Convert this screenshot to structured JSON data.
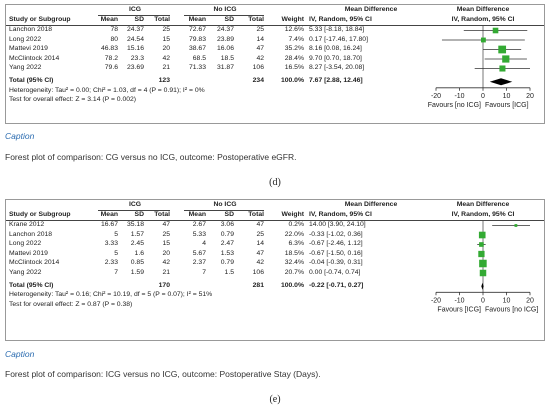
{
  "headers": {
    "study": "Study or Subgroup",
    "mean": "Mean",
    "sd": "SD",
    "total": "Total",
    "weight": "Weight",
    "md_title": "Mean Difference",
    "md_method": "IV, Random, 95% CI"
  },
  "panels": [
    {
      "label": "(d)",
      "exp_group": "ICG",
      "ctrl_group": "No ICG",
      "caption_label": "Caption",
      "caption_text": "Forest plot of comparison: CG versus no ICG, outcome: Postoperative eGFR.",
      "studies": [
        {
          "name": "Lanchon 2018",
          "m1": "78",
          "sd1": "24.37",
          "n1": "25",
          "m2": "72.67",
          "sd2": "24.37",
          "n2": "25",
          "weight": "12.6%",
          "ci": "5.33 [-8.18, 18.84]",
          "md": 5.33,
          "lo": -8.18,
          "hi": 18.84,
          "w": 12.6
        },
        {
          "name": "Long 2022",
          "m1": "80",
          "sd1": "24.54",
          "n1": "15",
          "m2": "79.83",
          "sd2": "23.89",
          "n2": "14",
          "weight": "7.4%",
          "ci": "0.17 [-17.46, 17.80]",
          "md": 0.17,
          "lo": -17.46,
          "hi": 17.8,
          "w": 7.4
        },
        {
          "name": "Mattevi 2019",
          "m1": "46.83",
          "sd1": "15.16",
          "n1": "20",
          "m2": "38.67",
          "sd2": "16.06",
          "n2": "47",
          "weight": "35.2%",
          "ci": "8.16 [0.08, 16.24]",
          "md": 8.16,
          "lo": 0.08,
          "hi": 16.24,
          "w": 35.2
        },
        {
          "name": "McClintock 2014",
          "m1": "78.2",
          "sd1": "23.3",
          "n1": "42",
          "m2": "68.5",
          "sd2": "18.5",
          "n2": "42",
          "weight": "28.4%",
          "ci": "9.70 [0.70, 18.70]",
          "md": 9.7,
          "lo": 0.7,
          "hi": 18.7,
          "w": 28.4
        },
        {
          "name": "Yang 2022",
          "m1": "79.6",
          "sd1": "23.69",
          "n1": "21",
          "m2": "71.33",
          "sd2": "31.87",
          "n2": "106",
          "weight": "16.5%",
          "ci": "8.27 [-3.54, 20.08]",
          "md": 8.27,
          "lo": -3.54,
          "hi": 20.08,
          "w": 16.5
        }
      ],
      "total": {
        "label": "Total (95% CI)",
        "n1": "123",
        "n2": "234",
        "weight": "100.0%",
        "ci": "7.67 [2.88, 12.46]",
        "md": 7.67,
        "lo": 2.88,
        "hi": 12.46
      },
      "heterogeneity": "Heterogeneity: Tau² = 0.00; Chi² = 1.03, df = 4 (P = 0.91); I² = 0%",
      "overall_effect": "Test for overall effect: Z = 3.14 (P = 0.002)",
      "axis": {
        "ticks": [
          -20,
          -10,
          0,
          10,
          20
        ],
        "tick_labels": [
          "-20",
          "-10",
          "0",
          "10",
          "20"
        ],
        "xlim": [
          -20,
          20
        ],
        "favours_left": "Favours [no ICG]",
        "favours_right": "Favours [ICG]"
      }
    },
    {
      "label": "(e)",
      "exp_group": "ICG",
      "ctrl_group": "No ICG",
      "caption_label": "Caption",
      "caption_text": "Forest plot of comparison: ICG versus no ICG, outcome: Postoperative Stay (Days).",
      "studies": [
        {
          "name": "Krane 2012",
          "m1": "16.67",
          "sd1": "35.18",
          "n1": "47",
          "m2": "2.67",
          "sd2": "3.06",
          "n2": "47",
          "weight": "0.2%",
          "ci": "14.00 [3.90, 24.10]",
          "md": 14.0,
          "lo": 3.9,
          "hi": 24.1,
          "w": 0.2
        },
        {
          "name": "Lanchon 2018",
          "m1": "5",
          "sd1": "1.57",
          "n1": "25",
          "m2": "5.33",
          "sd2": "0.79",
          "n2": "25",
          "weight": "22.0%",
          "ci": "-0.33 [-1.02, 0.36]",
          "md": -0.33,
          "lo": -1.02,
          "hi": 0.36,
          "w": 22.0
        },
        {
          "name": "Long 2022",
          "m1": "3.33",
          "sd1": "2.45",
          "n1": "15",
          "m2": "4",
          "sd2": "2.47",
          "n2": "14",
          "weight": "6.3%",
          "ci": "-0.67 [-2.46, 1.12]",
          "md": -0.67,
          "lo": -2.46,
          "hi": 1.12,
          "w": 6.3
        },
        {
          "name": "Mattevi 2019",
          "m1": "5",
          "sd1": "1.6",
          "n1": "20",
          "m2": "5.67",
          "sd2": "1.53",
          "n2": "47",
          "weight": "18.5%",
          "ci": "-0.67 [-1.50, 0.16]",
          "md": -0.67,
          "lo": -1.5,
          "hi": 0.16,
          "w": 18.5
        },
        {
          "name": "McClintock 2014",
          "m1": "2.33",
          "sd1": "0.85",
          "n1": "42",
          "m2": "2.37",
          "sd2": "0.79",
          "n2": "42",
          "weight": "32.4%",
          "ci": "-0.04 [-0.39, 0.31]",
          "md": -0.04,
          "lo": -0.39,
          "hi": 0.31,
          "w": 32.4
        },
        {
          "name": "Yang 2022",
          "m1": "7",
          "sd1": "1.59",
          "n1": "21",
          "m2": "7",
          "sd2": "1.5",
          "n2": "106",
          "weight": "20.7%",
          "ci": "0.00 [-0.74, 0.74]",
          "md": 0.0,
          "lo": -0.74,
          "hi": 0.74,
          "w": 20.7
        }
      ],
      "total": {
        "label": "Total (95% CI)",
        "n1": "170",
        "n2": "281",
        "weight": "100.0%",
        "ci": "-0.22 [-0.71, 0.27]",
        "md": -0.22,
        "lo": -0.71,
        "hi": 0.27
      },
      "heterogeneity": "Heterogeneity: Tau² = 0.16; Chi² = 10.19, df = 5 (P = 0.07); I² = 51%",
      "overall_effect": "Test for overall effect: Z = 0.87 (P = 0.38)",
      "axis": {
        "ticks": [
          -20,
          -10,
          0,
          10,
          20
        ],
        "tick_labels": [
          "-20",
          "-10",
          "0",
          "10",
          "20"
        ],
        "xlim": [
          -20,
          20
        ],
        "favours_left": "Favours [ICG]",
        "favours_right": "Favours [no ICG]"
      }
    }
  ],
  "colors": {
    "study_marker": "#33aa33",
    "ci_line": "#333333",
    "diamond": "#000000",
    "caption_label": "#2b6cb0"
  },
  "chart_data": [
    {
      "type": "scatter",
      "title": "Forest plot of comparison: CG versus no ICG, outcome: Postoperative eGFR.",
      "xlabel": "Mean Difference, IV, Random, 95% CI",
      "xlim": [
        -20,
        20
      ],
      "categories": [
        "Lanchon 2018",
        "Long 2022",
        "Mattevi 2019",
        "McClintock 2014",
        "Yang 2022",
        "Total (95% CI)"
      ],
      "values": [
        5.33,
        0.17,
        8.16,
        9.7,
        8.27,
        7.67
      ],
      "ci_lower": [
        -8.18,
        -17.46,
        0.08,
        0.7,
        -3.54,
        2.88
      ],
      "ci_upper": [
        18.84,
        17.8,
        16.24,
        18.7,
        20.08,
        12.46
      ],
      "weights_percent": [
        12.6,
        7.4,
        35.2,
        28.4,
        16.5,
        100.0
      ]
    },
    {
      "type": "scatter",
      "title": "Forest plot of comparison: ICG versus no ICG, outcome: Postoperative Stay (Days).",
      "xlabel": "Mean Difference, IV, Random, 95% CI",
      "xlim": [
        -20,
        20
      ],
      "categories": [
        "Krane 2012",
        "Lanchon 2018",
        "Long 2022",
        "Mattevi 2019",
        "McClintock 2014",
        "Yang 2022",
        "Total (95% CI)"
      ],
      "values": [
        14.0,
        -0.33,
        -0.67,
        -0.67,
        -0.04,
        0.0,
        -0.22
      ],
      "ci_lower": [
        3.9,
        -1.02,
        -2.46,
        -1.5,
        -0.39,
        -0.74,
        -0.71
      ],
      "ci_upper": [
        24.1,
        0.36,
        1.12,
        0.16,
        0.31,
        0.74,
        0.27
      ],
      "weights_percent": [
        0.2,
        22.0,
        6.3,
        18.5,
        32.4,
        20.7,
        100.0
      ]
    }
  ]
}
